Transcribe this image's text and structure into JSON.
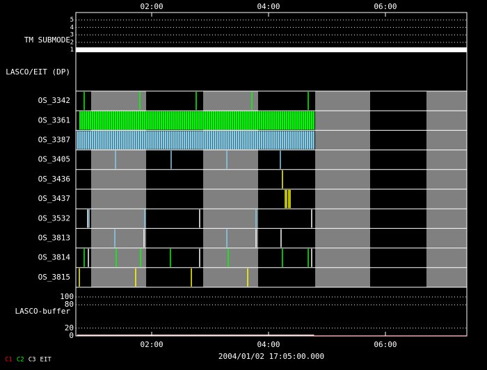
{
  "chart_data": {
    "type": "timeline",
    "xlim": [
      0.702,
      7.393
    ],
    "xticks": [
      {
        "value": 2,
        "label": "02:00"
      },
      {
        "value": 4,
        "label": "04:00"
      },
      {
        "value": 6,
        "label": "06:00"
      }
    ],
    "x_caption": "2004/01/02 17:05:00.000",
    "gray_periods": [
      [
        0.964,
        1.905
      ],
      [
        2.881,
        3.821
      ],
      [
        4.798,
        5.738
      ],
      [
        6.702,
        7.393
      ]
    ],
    "tm_submode": {
      "label": "TM SUBMODE",
      "ylim": [
        0.4,
        6.0
      ],
      "yticks": [
        1,
        2,
        3,
        4,
        5
      ],
      "x": [
        0.702,
        7.393
      ],
      "values": [
        1,
        1
      ],
      "color": "#ffffff"
    },
    "lasco_eit_label": "LASCO/EIT (DP)",
    "rows": [
      {
        "name": "OS_3342",
        "events": [
          {
            "color": "#00ff00",
            "times": [
              0.845,
              1.798,
              2.762,
              3.714,
              4.679
            ]
          }
        ]
      },
      {
        "name": "OS_3361",
        "spans": [
          {
            "color": "#00ff00",
            "range": [
              0.762,
              4.786
            ]
          }
        ]
      },
      {
        "name": "OS_3387",
        "spans": [
          {
            "color": "#87ceeb",
            "range": [
              0.714,
              4.786
            ]
          }
        ]
      },
      {
        "name": "OS_3405",
        "events": [
          {
            "color": "#87ceeb",
            "times": [
              1.381,
              2.333,
              3.286,
              4.202
            ]
          }
        ]
      },
      {
        "name": "OS_3436",
        "events": [
          {
            "color": "#ffff00",
            "times": [
              4.238
            ]
          }
        ]
      },
      {
        "name": "OS_3437",
        "events": [
          {
            "color": "#ffff00",
            "times": [
              4.286,
              4.31,
              4.345,
              4.369
            ]
          }
        ]
      },
      {
        "name": "OS_3532",
        "events": [
          {
            "color": "#ffffff",
            "times": [
              0.905,
              2.821,
              4.738
            ]
          },
          {
            "color": "#87ceeb",
            "times": [
              0.929,
              1.881,
              3.786
            ]
          }
        ]
      },
      {
        "name": "OS_3813",
        "events": [
          {
            "color": "#87ceeb",
            "times": [
              1.369,
              3.286
            ]
          },
          {
            "color": "#ffffff",
            "times": [
              1.869,
              3.786,
              4.214
            ]
          }
        ]
      },
      {
        "name": "OS_3814",
        "events": [
          {
            "color": "#00ff00",
            "times": [
              0.845,
              1.393,
              1.81,
              2.321,
              3.31,
              4.238,
              4.679
            ]
          },
          {
            "color": "#ffffff",
            "times": [
              0.917,
              2.821,
              4.738
            ]
          }
        ]
      },
      {
        "name": "OS_3815",
        "events": [
          {
            "color": "#ffff00",
            "times": [
              0.762,
              1.726,
              2.679,
              3.643
            ]
          }
        ]
      }
    ],
    "buffer": {
      "label": "LASCO-buffer",
      "ylim": [
        0,
        125
      ],
      "yticks": [
        0,
        20,
        80,
        100
      ],
      "series": [
        {
          "color": "#ffcccc",
          "x": [
            0.72,
            4.78
          ],
          "values": [
            2,
            2
          ]
        },
        {
          "color": "#cc0000",
          "x": [
            4.78,
            7.393
          ],
          "values": [
            0,
            0
          ]
        }
      ]
    },
    "legend": [
      {
        "name": "C1",
        "color": "#ff0000"
      },
      {
        "name": "C2",
        "color": "#00ff00"
      },
      {
        "name": "C3",
        "color": "#ffffff"
      },
      {
        "name": "EIT",
        "color": "#ffffff"
      }
    ]
  }
}
